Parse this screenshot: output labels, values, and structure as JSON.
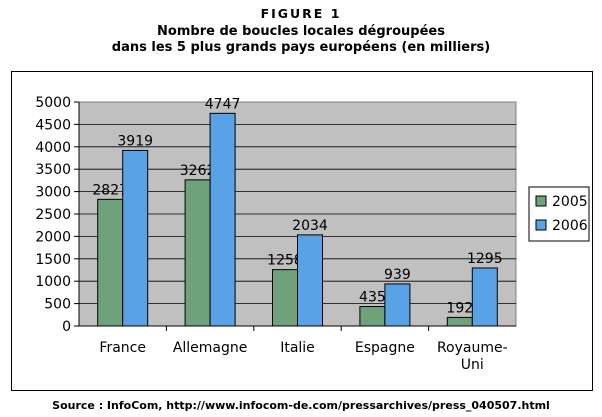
{
  "figure_label": "FIGURE 1",
  "title_lines": [
    "Nombre de boucles locales dégroupées",
    "dans les 5 plus grands pays européens (en milliers)"
  ],
  "source": "Source : InfoCom, http://www.infocom-de.com/pressarchives/press_040507.html",
  "chart_data": {
    "type": "bar",
    "categories": [
      [
        "France"
      ],
      [
        "Allemagne"
      ],
      [
        "Italie"
      ],
      [
        "Espagne"
      ],
      [
        "Royaume-",
        "Uni"
      ]
    ],
    "series": [
      {
        "name": "2005",
        "color": "#6fa27a",
        "values": [
          2827,
          3262,
          1258,
          435,
          192
        ]
      },
      {
        "name": "2006",
        "color": "#5aa2e6",
        "values": [
          3919,
          4747,
          2034,
          939,
          1295
        ]
      }
    ],
    "ylim": [
      0,
      5000
    ],
    "yticks": [
      0,
      500,
      1000,
      1500,
      2000,
      2500,
      3000,
      3500,
      4000,
      4500,
      5000
    ],
    "plot_background": "#c0c0c0",
    "grid": "horizontal",
    "data_labels": true,
    "legend_position": "right"
  }
}
